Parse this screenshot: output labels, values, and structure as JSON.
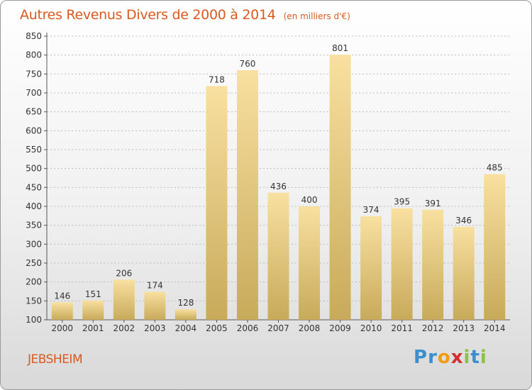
{
  "title": "Autres Revenus Divers de 2000 à 2014",
  "unit": "(en milliers d'€)",
  "commune": "JEBSHEIM",
  "brand": {
    "letters": [
      "P",
      "r",
      "o",
      "x",
      "i",
      "t",
      "i"
    ],
    "colors": [
      "#3a8fd0",
      "#3a8fd0",
      "#f39c12",
      "#d32f2f",
      "#8bc34a",
      "#3a8fd0",
      "#8bc34a"
    ]
  },
  "colors": {
    "bar_light": "#f8e0a0",
    "bar_dark": "#c8aa5a",
    "axis": "#555555",
    "grid": "#bdbdbd",
    "title": "#d85a20"
  },
  "chart_data": {
    "type": "bar",
    "categories": [
      "2000",
      "2001",
      "2002",
      "2003",
      "2004",
      "2005",
      "2006",
      "2007",
      "2008",
      "2009",
      "2010",
      "2011",
      "2012",
      "2013",
      "2014"
    ],
    "values": [
      146,
      151,
      206,
      174,
      128,
      718,
      760,
      436,
      400,
      801,
      374,
      395,
      391,
      346,
      485
    ],
    "title": "Autres Revenus Divers de 2000 à 2014",
    "xlabel": "",
    "ylabel": "",
    "ylim": [
      100,
      850
    ],
    "yticks": [
      100,
      150,
      200,
      250,
      300,
      350,
      400,
      450,
      500,
      550,
      600,
      650,
      700,
      750,
      800,
      850
    ],
    "grid": true,
    "data_labels": true
  }
}
